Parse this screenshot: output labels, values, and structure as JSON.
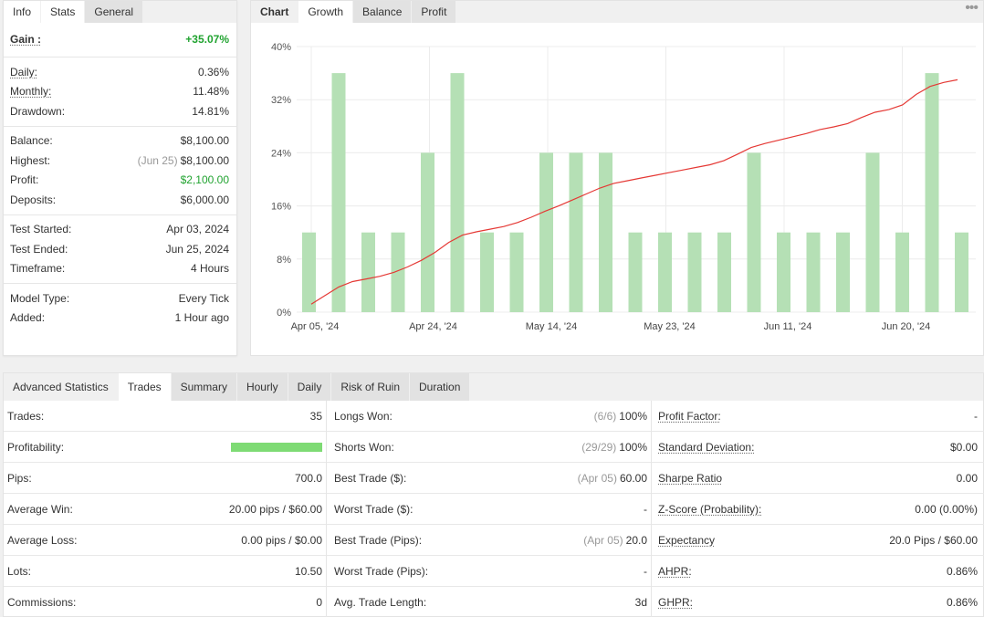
{
  "info_tabs": [
    "Info",
    "Stats",
    "General"
  ],
  "info": {
    "gain_label": "Gain :",
    "gain_value": "+35.07%",
    "daily_label": "Daily:",
    "daily_value": "0.36%",
    "monthly_label": "Monthly:",
    "monthly_value": "11.48%",
    "drawdown_label": "Drawdown:",
    "drawdown_value": "14.81%",
    "balance_label": "Balance:",
    "balance_value": "$8,100.00",
    "highest_label": "Highest:",
    "highest_date": "(Jun 25)",
    "highest_value": "$8,100.00",
    "profit_label": "Profit:",
    "profit_value": "$2,100.00",
    "deposits_label": "Deposits:",
    "deposits_value": "$6,000.00",
    "test_started_label": "Test Started:",
    "test_started_value": "Apr 03, 2024",
    "test_ended_label": "Test Ended:",
    "test_ended_value": "Jun 25, 2024",
    "timeframe_label": "Timeframe:",
    "timeframe_value": "4 Hours",
    "model_type_label": "Model Type:",
    "model_type_value": "Every Tick",
    "added_label": "Added:",
    "added_value": "1 Hour ago"
  },
  "chart_tabs": [
    "Chart",
    "Growth",
    "Balance",
    "Profit"
  ],
  "chart_menu_icon": "more-dots-icon",
  "chart_data": {
    "type": "bar+line",
    "y_ticks": [
      "0%",
      "8%",
      "16%",
      "24%",
      "32%",
      "40%"
    ],
    "ylim": [
      0,
      40
    ],
    "x_ticks": [
      "Apr 05, '24",
      "Apr 24, '24",
      "May 14, '24",
      "May 23, '24",
      "Jun 11, '24",
      "Jun 20, '24"
    ],
    "bars": [
      12,
      36,
      12,
      12,
      24,
      36,
      12,
      12,
      24,
      24,
      24,
      12,
      12,
      12,
      12,
      24,
      12,
      12,
      12,
      24,
      12,
      36,
      12
    ],
    "line": [
      1.2,
      2.5,
      3.8,
      4.6,
      5.0,
      5.4,
      6.0,
      6.8,
      7.8,
      9.0,
      10.5,
      11.6,
      12.1,
      12.5,
      12.9,
      13.5,
      14.3,
      15.2,
      16.0,
      16.9,
      17.8,
      18.7,
      19.4,
      19.8,
      20.2,
      20.6,
      21.0,
      21.4,
      21.8,
      22.2,
      22.8,
      23.8,
      24.8,
      25.4,
      25.9,
      26.4,
      26.9,
      27.5,
      27.9,
      28.4,
      29.3,
      30.1,
      30.5,
      31.2,
      32.8,
      34.0,
      34.6,
      35.0
    ],
    "bar_color": "#b5e0b5",
    "line_color": "#e53935",
    "grid": true
  },
  "stats_tabs": [
    "Advanced Statistics",
    "Trades",
    "Summary",
    "Hourly",
    "Daily",
    "Risk of Ruin",
    "Duration"
  ],
  "stats": {
    "col1": [
      {
        "label": "Trades:",
        "value": "35"
      },
      {
        "label": "Profitability:",
        "bar_fraction": 1.0
      },
      {
        "label": "Pips:",
        "value": "700.0"
      },
      {
        "label": "Average Win:",
        "value": "20.00 pips / $60.00"
      },
      {
        "label": "Average Loss:",
        "value": "0.00 pips / $0.00"
      },
      {
        "label": "Lots:",
        "value": "10.50"
      },
      {
        "label": "Commissions:",
        "value": "0"
      }
    ],
    "col2": [
      {
        "label": "Longs Won:",
        "muted": "(6/6)",
        "value": "100%"
      },
      {
        "label": "Shorts Won:",
        "muted": "(29/29)",
        "value": "100%"
      },
      {
        "label": "Best Trade ($):",
        "muted": "(Apr 05)",
        "value": "60.00"
      },
      {
        "label": "Worst Trade ($):",
        "muted": "",
        "value": "-"
      },
      {
        "label": "Best Trade (Pips):",
        "muted": "(Apr 05)",
        "value": "20.0"
      },
      {
        "label": "Worst Trade (Pips):",
        "muted": "",
        "value": "-"
      },
      {
        "label": "Avg. Trade Length:",
        "muted": "",
        "value": "3d"
      }
    ],
    "col3": [
      {
        "label": "Profit Factor:",
        "value": "-"
      },
      {
        "label": "Standard Deviation:",
        "value": "$0.00"
      },
      {
        "label": "Sharpe Ratio",
        "value": "0.00"
      },
      {
        "label": "Z-Score (Probability):",
        "value": "0.00 (0.00%)"
      },
      {
        "label": "Expectancy",
        "value": "20.0 Pips / $60.00"
      },
      {
        "label": "AHPR:",
        "value": "0.86%"
      },
      {
        "label": "GHPR:",
        "value": "0.86%"
      }
    ]
  }
}
